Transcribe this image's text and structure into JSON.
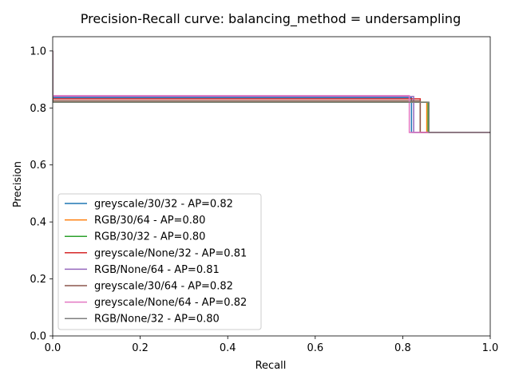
{
  "chart_data": {
    "type": "line",
    "title": "Precision-Recall curve: balancing_method = undersampling",
    "xlabel": "Recall",
    "ylabel": "Precision",
    "xlim": [
      0,
      1
    ],
    "ylim": [
      0,
      1.05
    ],
    "xticks": [
      "0.0",
      "0.2",
      "0.4",
      "0.6",
      "0.8",
      "1.0"
    ],
    "yticks": [
      "0.0",
      "0.2",
      "0.4",
      "0.6",
      "0.8",
      "1.0"
    ],
    "xtick_values": [
      0,
      0.2,
      0.4,
      0.6,
      0.8,
      1.0
    ],
    "ytick_values": [
      0,
      0.2,
      0.4,
      0.6,
      0.8,
      1.0
    ],
    "grid": false,
    "legend_position": "lower-left",
    "series": [
      {
        "name": "greyscale/30/32 - AP=0.82",
        "color": "#1f77b4",
        "x": [
          0,
          0,
          0.82,
          0.82,
          0.855,
          0.855,
          1.0
        ],
        "y": [
          1.0,
          0.836,
          0.836,
          0.714,
          0.714,
          0.714,
          0.714
        ]
      },
      {
        "name": "RGB/30/64 - AP=0.80",
        "color": "#ff7f0e",
        "x": [
          0,
          0,
          0.855,
          0.855,
          1.0
        ],
        "y": [
          1.0,
          0.82,
          0.82,
          0.714,
          0.714
        ]
      },
      {
        "name": "RGB/30/32 - AP=0.80",
        "color": "#2ca02c",
        "x": [
          0,
          0,
          0.858,
          0.858,
          1.0
        ],
        "y": [
          1.0,
          0.82,
          0.82,
          0.714,
          0.714
        ]
      },
      {
        "name": "greyscale/None/32 - AP=0.81",
        "color": "#d62728",
        "x": [
          0,
          0,
          0.84,
          0.84,
          1.0
        ],
        "y": [
          1.0,
          0.832,
          0.832,
          0.714,
          0.714
        ]
      },
      {
        "name": "RGB/None/64 - AP=0.81",
        "color": "#9467bd",
        "x": [
          0,
          0,
          0.825,
          0.825,
          1.0
        ],
        "y": [
          1.0,
          0.84,
          0.84,
          0.714,
          0.714
        ]
      },
      {
        "name": "greyscale/30/64 - AP=0.82",
        "color": "#8c564b",
        "x": [
          0,
          0,
          0.84,
          0.84,
          0.85,
          0.85,
          1.0
        ],
        "y": [
          1.0,
          0.825,
          0.825,
          0.714,
          0.714,
          0.714,
          0.714
        ]
      },
      {
        "name": "greyscale/None/64 - AP=0.82",
        "color": "#e377c2",
        "x": [
          0,
          0,
          0.815,
          0.815,
          0.85,
          0.85,
          1.0
        ],
        "y": [
          1.0,
          0.843,
          0.843,
          0.714,
          0.714,
          0.714,
          0.714
        ]
      },
      {
        "name": "RGB/None/32 - AP=0.80",
        "color": "#7f7f7f",
        "x": [
          0,
          0,
          0.86,
          0.86,
          1.0
        ],
        "y": [
          1.0,
          0.82,
          0.82,
          0.714,
          0.714
        ]
      }
    ]
  }
}
